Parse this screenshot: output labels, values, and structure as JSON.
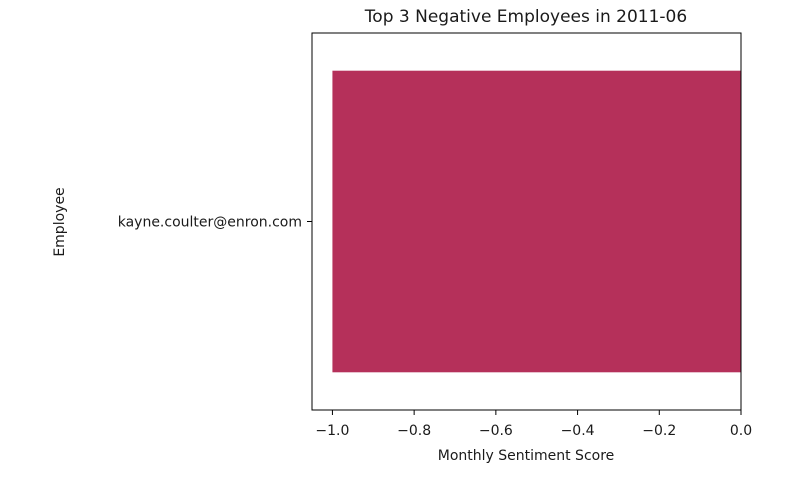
{
  "chart_data": {
    "type": "bar",
    "orientation": "horizontal",
    "title": "Top 3 Negative Employees in 2011-06",
    "xlabel": "Monthly Sentiment Score",
    "ylabel": "Employee",
    "categories": [
      "kayne.coulter@enron.com"
    ],
    "values": [
      -1.0
    ],
    "xlim": [
      -1.05,
      0.0
    ],
    "xticks": [
      -1.0,
      -0.8,
      -0.6,
      -0.4,
      -0.2,
      0.0
    ],
    "xtick_labels": [
      "−1.0",
      "−0.8",
      "−0.6",
      "−0.4",
      "−0.2",
      "0.0"
    ],
    "bar_color": "#b5305a",
    "grid": false,
    "legend": "none"
  }
}
